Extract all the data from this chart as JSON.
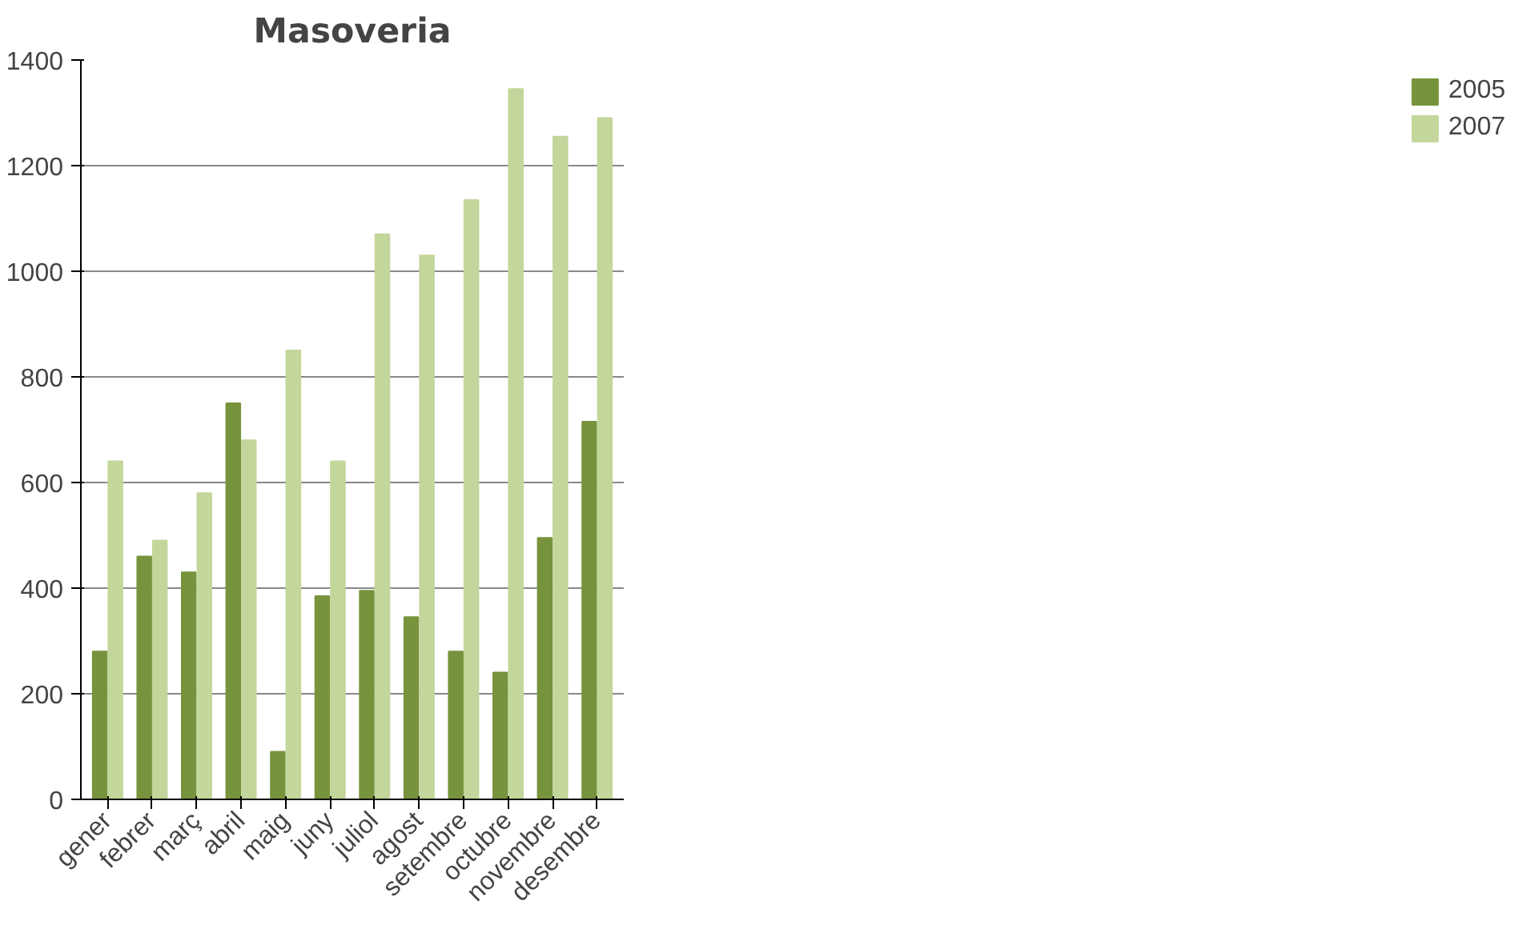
{
  "chart_data": {
    "type": "bar",
    "title": "Masoveria",
    "categories": [
      "gener",
      "febrer",
      "març",
      "abril",
      "maig",
      "juny",
      "juliol",
      "agost",
      "setembre",
      "octubre",
      "novembre",
      "desembre"
    ],
    "series": [
      {
        "name": "2005",
        "color": "#77933c",
        "values": [
          280,
          460,
          430,
          750,
          90,
          385,
          395,
          345,
          280,
          240,
          495,
          715
        ]
      },
      {
        "name": "2007",
        "color": "#c3d69b",
        "values": [
          640,
          490,
          580,
          680,
          850,
          640,
          1070,
          1030,
          1135,
          1345,
          1255,
          1290
        ]
      }
    ],
    "ylim": [
      0,
      1400
    ],
    "yticks": [
      0,
      200,
      400,
      600,
      800,
      1000,
      1200,
      1400
    ],
    "grid": "y",
    "legend": "right"
  }
}
